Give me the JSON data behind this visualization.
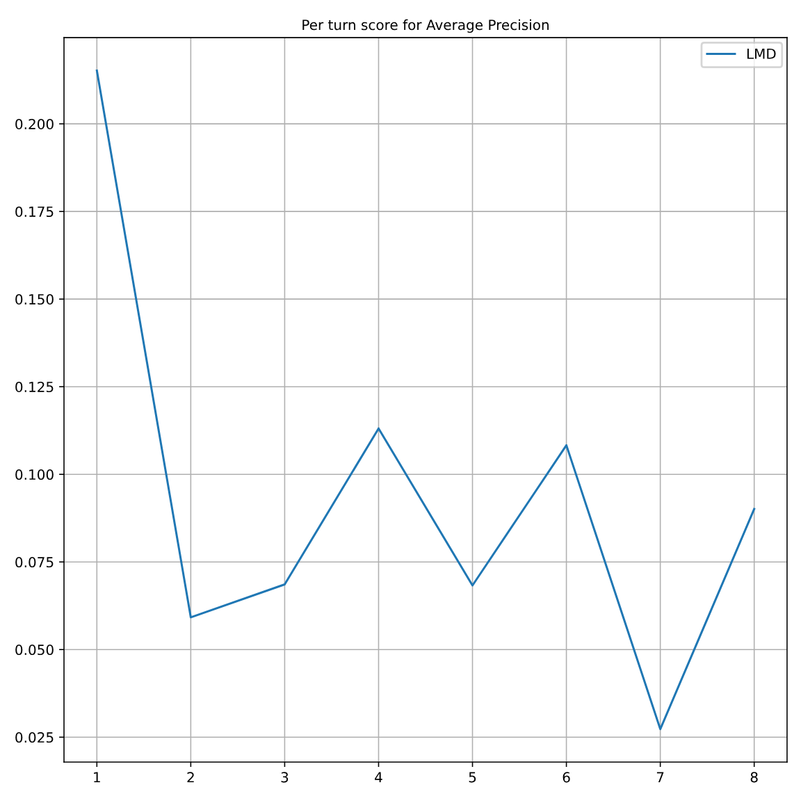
{
  "chart_data": {
    "type": "line",
    "title": "Per turn score for Average Precision",
    "x": [
      1,
      2,
      3,
      4,
      5,
      6,
      7,
      8
    ],
    "series": [
      {
        "name": "LMD",
        "color": "#1f77b4",
        "values": [
          0.2152,
          0.0592,
          0.0686,
          0.1131,
          0.0683,
          0.1083,
          0.0273,
          0.0901
        ]
      }
    ],
    "xlim": [
      0.65,
      8.35
    ],
    "xticks": [
      1,
      2,
      3,
      4,
      5,
      6,
      7,
      8
    ],
    "ylim": [
      0.0179,
      0.2246
    ],
    "yticks": [
      {
        "value": 0.025,
        "label": "0.025"
      },
      {
        "value": 0.05,
        "label": "0.050"
      },
      {
        "value": 0.075,
        "label": "0.075"
      },
      {
        "value": 0.1,
        "label": "0.100"
      },
      {
        "value": 0.125,
        "label": "0.125"
      },
      {
        "value": 0.15,
        "label": "0.150"
      },
      {
        "value": 0.175,
        "label": "0.175"
      },
      {
        "value": 0.2,
        "label": "0.200"
      }
    ],
    "grid": true,
    "legend": "top right",
    "line_style": "solid",
    "marker": "none"
  }
}
